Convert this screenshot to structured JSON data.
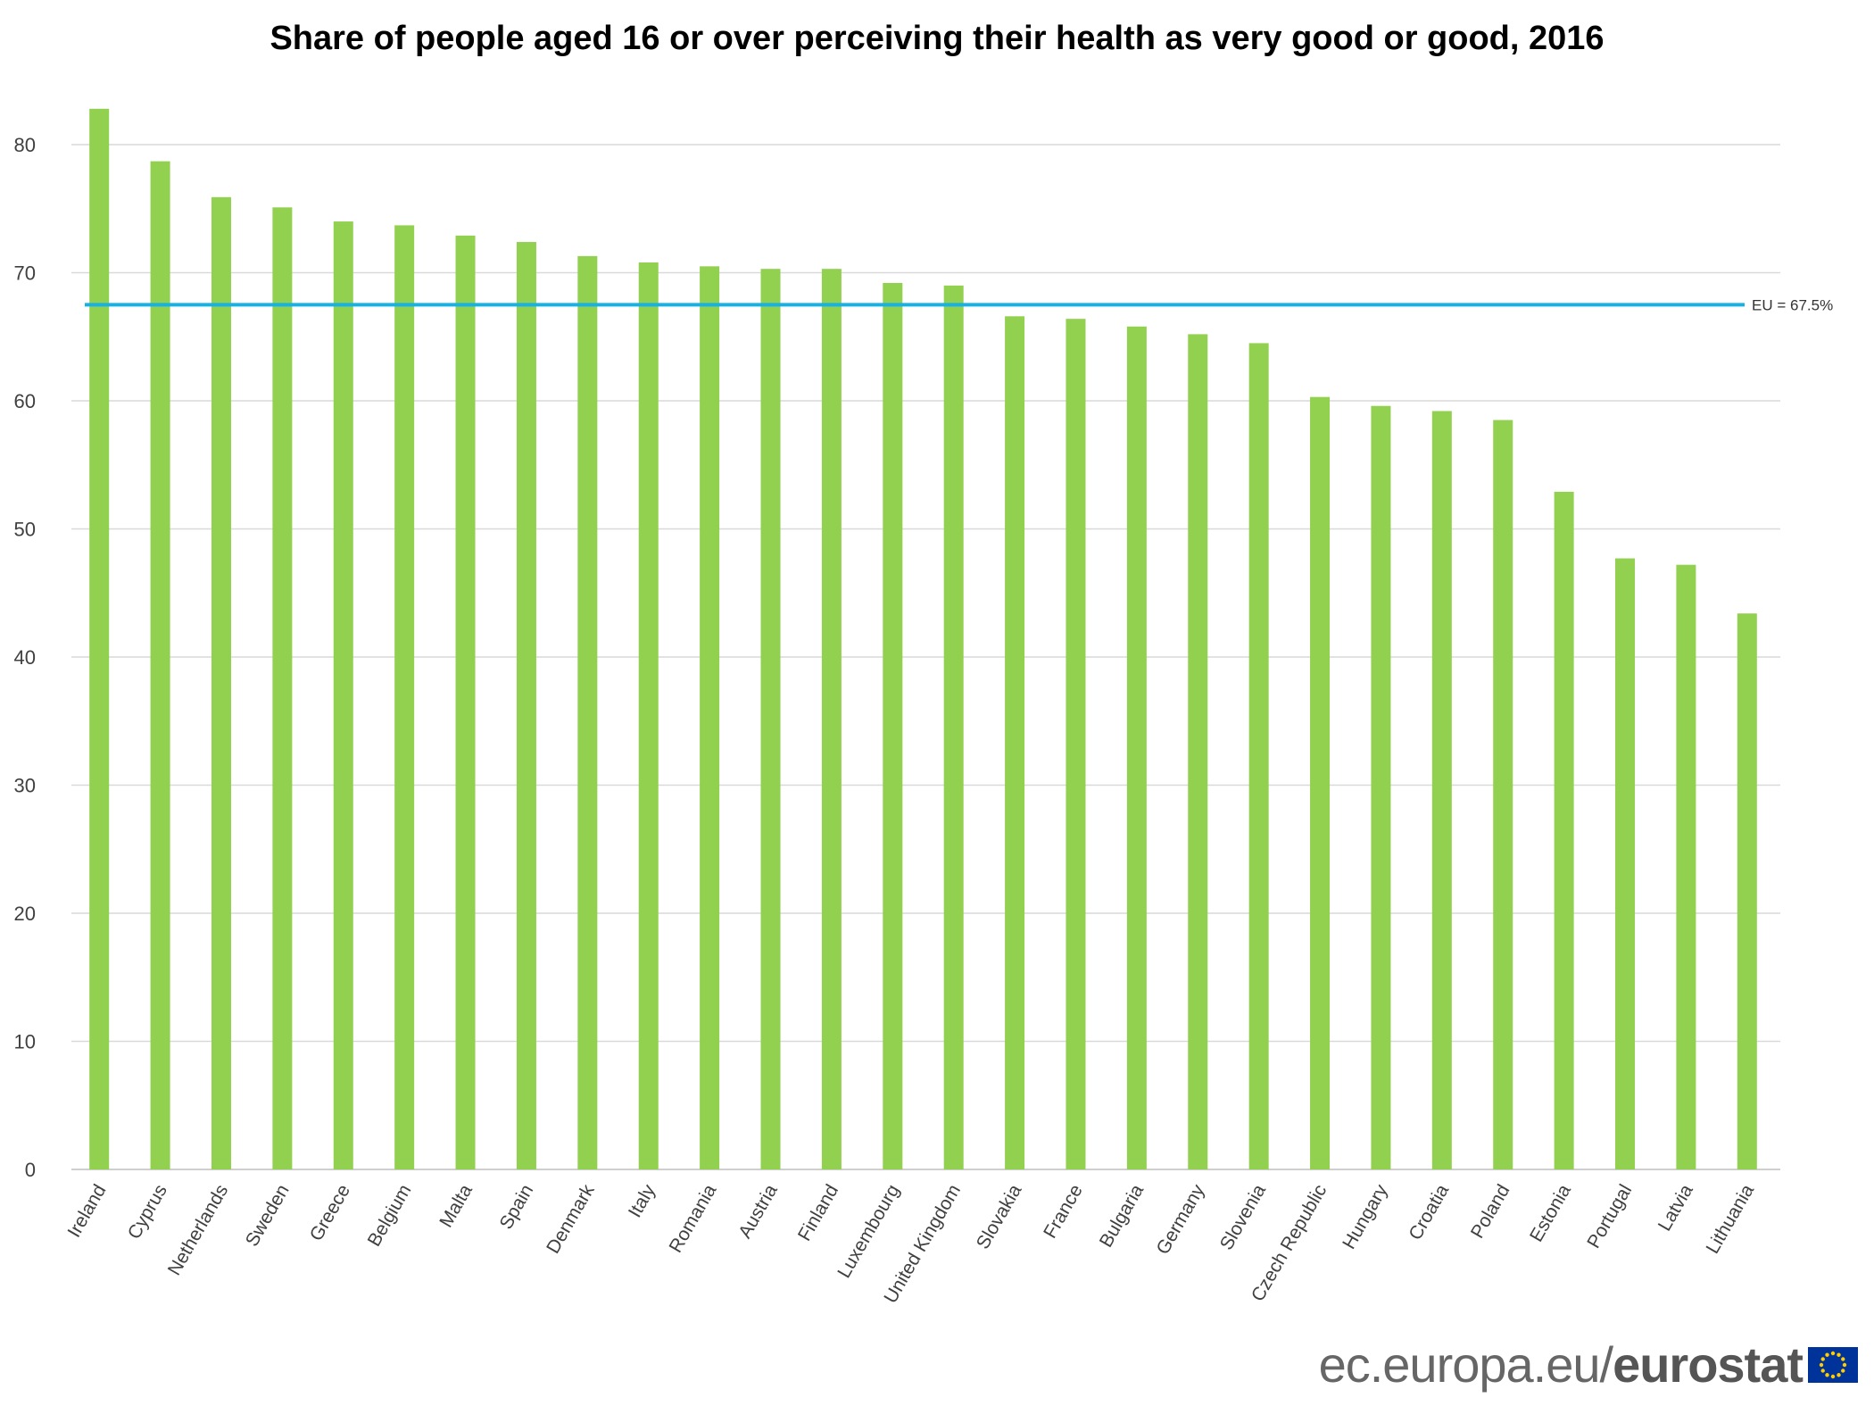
{
  "chart_data": {
    "type": "bar",
    "title": "Share of people aged 16 or over perceiving their health as very good or good, 2016",
    "xlabel": "",
    "ylabel": "",
    "ylim": [
      0,
      80
    ],
    "yticks": [
      0,
      10,
      20,
      30,
      40,
      50,
      60,
      70,
      80
    ],
    "grid": true,
    "categories": [
      "Ireland",
      "Cyprus",
      "Netherlands",
      "Sweden",
      "Greece",
      "Belgium",
      "Malta",
      "Spain",
      "Denmark",
      "Italy",
      "Romania",
      "Austria",
      "Finland",
      "Luxembourg",
      "United Kingdom",
      "Slovakia",
      "France",
      "Bulgaria",
      "Germany",
      "Slovenia",
      "Czech Republic",
      "Hungary",
      "Croatia",
      "Poland",
      "Estonia",
      "Portugal",
      "Latvia",
      "Lithuania"
    ],
    "values": [
      82.8,
      78.7,
      75.9,
      75.1,
      74.0,
      73.7,
      72.9,
      72.4,
      71.3,
      70.8,
      70.5,
      70.3,
      70.3,
      69.2,
      69.0,
      66.6,
      66.4,
      65.8,
      65.2,
      64.5,
      60.3,
      59.6,
      59.2,
      58.5,
      52.9,
      47.7,
      47.2,
      43.4
    ],
    "reference_line": {
      "label": "EU = 67.5%",
      "value": 67.5
    },
    "colors": {
      "bar": "#92d050",
      "reference": "#17b1e3",
      "grid": "#d9d9d9"
    }
  },
  "footer": {
    "site": "ec.europa.eu/",
    "brand": "eurostat"
  }
}
